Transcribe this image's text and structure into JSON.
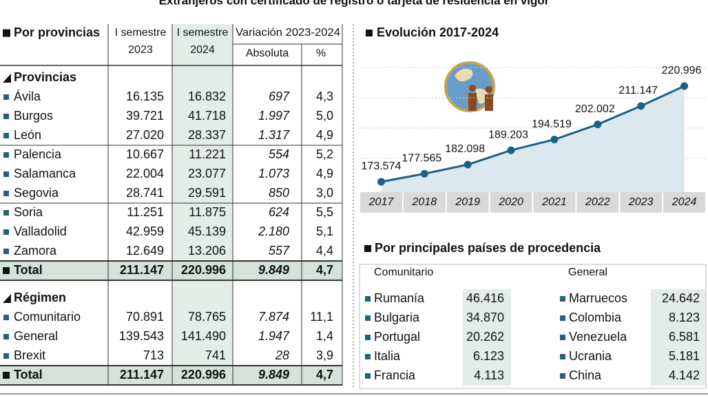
{
  "title": "Extranjeros con certificado de registro o tarjeta de residencia en vigor",
  "table": {
    "title": "Por provincias",
    "header": [
      "I semestre",
      "2023",
      "I semestre",
      "2024",
      "Variación 2023-2024",
      "Absoluta",
      "%"
    ],
    "sections": [
      {
        "label": "Provincias",
        "rows": [
          [
            "Ávila",
            "16.135",
            "16.832",
            "697",
            "4,3"
          ],
          [
            "Burgos",
            "39.721",
            "41.718",
            "1.997",
            "5,0"
          ],
          [
            "León",
            "27.020",
            "28.337",
            "1.317",
            "4,9"
          ],
          [
            "Palencia",
            "10.667",
            "11.221",
            "554",
            "5,2"
          ],
          [
            "Salamanca",
            "22.004",
            "23.077",
            "1.073",
            "4,9"
          ],
          [
            "Segovia",
            "28.741",
            "29.591",
            "850",
            "3,0"
          ],
          [
            "Soria",
            "11.251",
            "11.875",
            "624",
            "5,5"
          ],
          [
            "Valladolid",
            "42.959",
            "45.139",
            "2.180",
            "5,1"
          ],
          [
            "Zamora",
            "12.649",
            "13.206",
            "557",
            "4,4"
          ]
        ],
        "total": [
          "Total",
          "211.147",
          "220.996",
          "9.849",
          "4,7"
        ]
      },
      {
        "label": "Régimen",
        "rows": [
          [
            "Comunitario",
            "70.891",
            "78.765",
            "7.874",
            "11,1"
          ],
          [
            "General",
            "139.543",
            "141.490",
            "1.947",
            "1,4"
          ],
          [
            "Brexit",
            "713",
            "741",
            "28",
            "3,9"
          ]
        ],
        "total": [
          "Total",
          "211.147",
          "220.996",
          "9.849",
          "4,7"
        ]
      }
    ]
  },
  "chart_data": {
    "type": "line",
    "title": "Evolución 2017-2024",
    "categories": [
      "2017",
      "2018",
      "2019",
      "2020",
      "2021",
      "2022",
      "2023",
      "2024"
    ],
    "values": [
      173574,
      177565,
      182098,
      189203,
      194519,
      202002,
      211147,
      220996
    ],
    "value_labels": [
      "173.574",
      "177.565",
      "182.098",
      "189.203",
      "194.519",
      "202.002",
      "211.147",
      "220.996"
    ],
    "color": "#1e5f84"
  },
  "countries": {
    "title": "Por principales países de procedencia",
    "groups": [
      {
        "label": "Comunitario",
        "rows": [
          [
            "Rumanía",
            "46.416"
          ],
          [
            "Bulgaria",
            "34.870"
          ],
          [
            "Portugal",
            "20.262"
          ],
          [
            "Italia",
            "6.123"
          ],
          [
            "Francia",
            "4.113"
          ]
        ]
      },
      {
        "label": "General",
        "rows": [
          [
            "Marruecos",
            "24.642"
          ],
          [
            "Colombia",
            "8.123"
          ],
          [
            "Venezuela",
            "6.581"
          ],
          [
            "Ucrania",
            "5.181"
          ],
          [
            "China",
            "4.142"
          ]
        ]
      }
    ]
  }
}
